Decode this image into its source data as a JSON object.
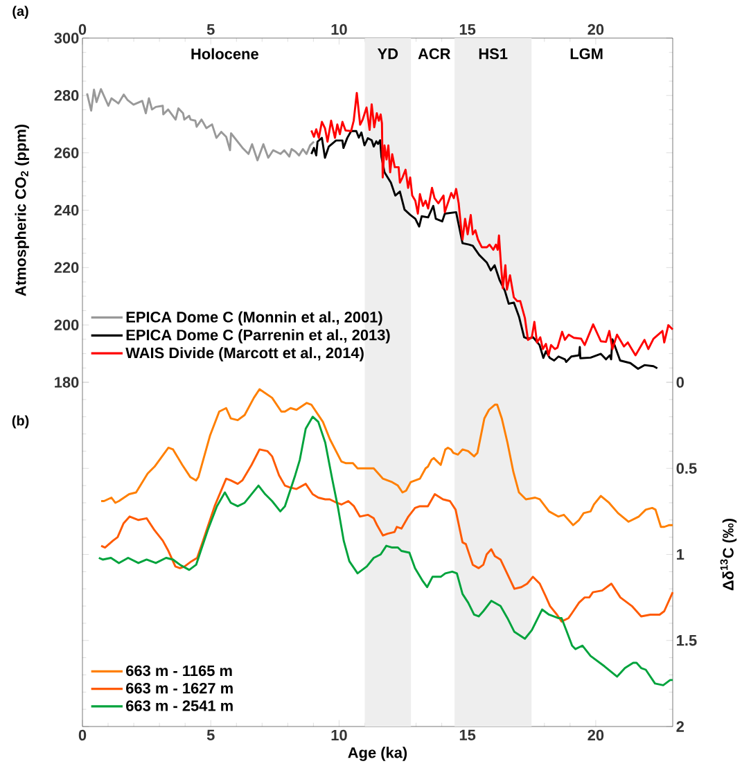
{
  "chart_data": [
    {
      "type": "line",
      "ylabel": "Atmospheric CO$_{2}$ (ppm)",
      "xlim": [
        0,
        23
      ],
      "xticks": [
        0,
        5,
        10,
        15,
        20
      ],
      "ylim": [
        180,
        300
      ],
      "yticks": [
        180,
        200,
        220,
        240,
        260,
        280,
        300
      ],
      "legend": "bottom left",
      "bands": [
        {
          "axis": "x",
          "from": 11,
          "to": 12.8,
          "label": "YD",
          "color": "#eeeeee"
        },
        {
          "axis": "x",
          "from": 14.5,
          "to": 17.5,
          "label": "HS1",
          "color": "#eeeeee"
        }
      ],
      "annotations": [
        "(a)",
        "Holocene",
        "ACR",
        "LGM"
      ],
      "series": [
        {
          "name": "EPICA Dome C (Monnin et al., 2001)",
          "color": "#999999",
          "x": [
            0.18,
            0.34,
            0.45,
            0.55,
            0.72,
            1.01,
            1.13,
            1.27,
            1.4,
            1.61,
            1.75,
            1.99,
            2.33,
            2.47,
            2.59,
            2.71,
            2.86,
            3.13,
            3.15,
            3.34,
            3.63,
            3.74,
            3.92,
            3.97,
            4.16,
            4.21,
            4.4,
            4.45,
            4.64,
            4.83,
            5.05,
            5.22,
            5.41,
            5.6,
            5.75,
            5.79,
            6.23,
            6.47,
            6.61,
            6.82,
            7.05,
            7.24,
            7.43,
            7.72,
            7.86,
            8.06,
            8.15,
            8.3,
            8.44,
            8.59,
            8.73,
            8.87,
            9.02
          ],
          "values": [
            280.7,
            274.7,
            282.0,
            277.7,
            282.2,
            276.4,
            279.0,
            278.1,
            277.2,
            280.3,
            278.5,
            276.8,
            278.1,
            273.8,
            279.0,
            275.1,
            276.0,
            276.4,
            273.4,
            275.1,
            271.6,
            275.5,
            273.8,
            271.6,
            272.9,
            271.6,
            271.2,
            269.1,
            271.6,
            268.6,
            269.9,
            265.2,
            267.3,
            265.6,
            260.9,
            266.8,
            261.8,
            259.6,
            263.0,
            257.4,
            263.0,
            258.3,
            260.9,
            259.6,
            260.9,
            258.7,
            261.3,
            260.4,
            259.1,
            261.3,
            259.6,
            262.6,
            263.9
          ]
        },
        {
          "name": "EPICA Dome C (Parrenin et al., 2013)",
          "color": "#000000",
          "x": [
            8.92,
            9.02,
            9.11,
            9.16,
            9.33,
            9.45,
            9.6,
            9.88,
            10.13,
            10.17,
            10.32,
            10.47,
            10.67,
            10.77,
            10.87,
            10.99,
            11.12,
            11.27,
            11.35,
            11.45,
            11.52,
            11.6,
            11.65,
            11.77,
            12.02,
            12.19,
            12.37,
            12.55,
            12.77,
            12.97,
            13.12,
            13.22,
            13.47,
            13.67,
            13.77,
            14.02,
            14.12,
            14.56,
            14.81,
            15.06,
            15.21,
            15.46,
            15.76,
            15.91,
            16.06,
            16.26,
            16.46,
            16.61,
            16.81,
            17.01,
            17.21,
            17.36,
            17.56,
            17.81,
            17.96,
            18.06,
            18.21,
            18.38,
            18.55,
            18.8,
            18.85,
            19.05,
            19.35,
            19.38,
            19.4,
            19.8,
            20.2,
            20.4,
            20.55,
            20.6,
            20.65,
            20.95,
            21.35,
            21.65,
            21.9,
            22.25,
            22.4
          ],
          "values": [
            259.6,
            261.7,
            259.1,
            263.9,
            265.2,
            258.3,
            262.2,
            264.3,
            264.3,
            261.7,
            265.2,
            267.6,
            267.6,
            265.3,
            267.1,
            262.6,
            265.1,
            264.4,
            262.2,
            264.0,
            263.1,
            264.4,
            258.6,
            253.2,
            249.6,
            245.1,
            246.5,
            240.2,
            238.4,
            237.0,
            234.3,
            237.9,
            237.5,
            241.5,
            237.0,
            236.1,
            238.8,
            239.3,
            228.5,
            228.0,
            227.6,
            224.4,
            221.7,
            219.0,
            220.8,
            215.5,
            211.9,
            207.4,
            207.8,
            202.9,
            195.7,
            195.2,
            195.7,
            193.0,
            188.5,
            190.8,
            188.5,
            187.6,
            189.0,
            188.0,
            187.1,
            189.0,
            189.4,
            192.3,
            188.4,
            188.6,
            189.9,
            188.0,
            189.4,
            188.0,
            195.0,
            187.6,
            186.7,
            184.7,
            186.0,
            185.6,
            184.9
          ]
        },
        {
          "name": "WAIS Divide (Marcott et al., 2014)",
          "color": "#ff0000",
          "x": [
            8.92,
            9.02,
            9.11,
            9.21,
            9.33,
            9.45,
            9.55,
            9.69,
            9.84,
            9.93,
            10.03,
            10.13,
            10.25,
            10.47,
            10.57,
            10.69,
            10.82,
            10.92,
            11.07,
            11.19,
            11.27,
            11.37,
            11.47,
            11.55,
            11.62,
            11.67,
            11.7,
            11.77,
            11.85,
            11.92,
            11.99,
            12.07,
            12.17,
            12.32,
            12.37,
            12.47,
            12.59,
            12.69,
            12.77,
            12.85,
            12.97,
            13.07,
            13.15,
            13.27,
            13.37,
            13.47,
            13.62,
            13.72,
            13.87,
            14.07,
            14.12,
            14.27,
            14.37,
            14.47,
            14.56,
            14.66,
            14.76,
            14.81,
            14.91,
            15.01,
            15.13,
            15.21,
            15.31,
            15.41,
            15.56,
            15.76,
            15.86,
            16.01,
            16.11,
            16.18,
            16.23,
            16.31,
            16.38,
            16.48,
            16.54,
            16.66,
            16.81,
            16.94,
            17.06,
            17.24,
            17.36,
            17.51,
            17.61,
            17.71,
            17.84,
            17.94,
            18.06,
            18.16,
            18.26,
            18.41,
            18.51,
            18.69,
            18.8,
            18.95,
            19.15,
            19.43,
            19.57,
            19.9,
            20.2,
            20.4,
            20.53,
            20.65,
            20.83,
            21.1,
            21.25,
            21.55,
            21.9,
            22.05,
            22.25,
            22.6,
            22.67,
            22.83,
            23.0
          ],
          "values": [
            267.8,
            265.6,
            268.2,
            265.2,
            270.8,
            268.6,
            263.9,
            271.2,
            265.2,
            269.9,
            266.5,
            270.8,
            267.8,
            267.6,
            271.2,
            280.9,
            269.8,
            271.6,
            275.8,
            268.0,
            276.9,
            268.9,
            273.8,
            271.2,
            273.4,
            270.3,
            251.4,
            262.6,
            257.7,
            262.6,
            253.2,
            259.5,
            255.0,
            255.0,
            249.6,
            251.4,
            254.1,
            247.8,
            251.4,
            245.1,
            243.3,
            238.8,
            245.6,
            241.5,
            243.3,
            240.6,
            247.8,
            244.2,
            242.4,
            245.1,
            239.3,
            243.3,
            246.0,
            244.2,
            247.4,
            242.4,
            233.4,
            229.8,
            237.0,
            231.6,
            238.3,
            231.6,
            233.0,
            229.8,
            227.1,
            227.1,
            228.0,
            226.2,
            228.0,
            226.2,
            231.2,
            220.8,
            212.8,
            220.8,
            212.3,
            217.3,
            209.6,
            208.3,
            208.3,
            202.4,
            194.8,
            195.7,
            201.1,
            193.9,
            195.7,
            191.6,
            193.4,
            189.4,
            193.0,
            191.6,
            192.1,
            197.6,
            194.8,
            196.6,
            195.5,
            195.2,
            193.0,
            200.2,
            194.3,
            194.1,
            197.9,
            191.6,
            196.6,
            192.5,
            193.9,
            189.4,
            194.8,
            191.6,
            195.2,
            197.9,
            193.9,
            199.9,
            198.4
          ]
        }
      ]
    },
    {
      "type": "line",
      "xlabel": "Age (ka)",
      "ylabel": "Δδ$^{13}$C (‰)",
      "xlim": [
        0,
        23
      ],
      "xticks": [
        0,
        5,
        10,
        15,
        20
      ],
      "ylim": [
        2,
        0
      ],
      "yticks": [
        0,
        0.5,
        1,
        1.5,
        2
      ],
      "legend": "bottom left",
      "bands": [
        {
          "axis": "x",
          "from": 11,
          "to": 12.8,
          "color": "#eeeeee"
        },
        {
          "axis": "x",
          "from": 14.5,
          "to": 17.5,
          "color": "#eeeeee"
        }
      ],
      "annotations": [
        "(b)"
      ],
      "series": [
        {
          "name": "663 m - 1165 m",
          "color": "#ff7f00",
          "x": [
            0.73,
            0.84,
            1.13,
            1.28,
            1.42,
            1.82,
            2.09,
            2.54,
            2.81,
            3.35,
            3.53,
            3.89,
            4.2,
            4.43,
            4.52,
            4.97,
            5.33,
            5.6,
            5.78,
            6.05,
            6.32,
            6.68,
            6.9,
            7.39,
            7.75,
            7.89,
            8.11,
            8.34,
            8.74,
            8.92,
            9.37,
            9.64,
            10.09,
            10.27,
            10.54,
            10.72,
            11.08,
            11.35,
            11.71,
            12.07,
            12.29,
            12.47,
            12.61,
            12.79,
            13.15,
            13.37,
            13.46,
            13.6,
            13.69,
            13.96,
            14.14,
            14.24,
            14.36,
            14.45,
            14.63,
            14.81,
            15.03,
            15.26,
            15.39,
            15.66,
            15.84,
            16.07,
            16.16,
            16.34,
            16.56,
            16.79,
            17.01,
            17.28,
            17.64,
            17.82,
            18.18,
            18.54,
            18.76,
            19.12,
            19.35,
            19.53,
            19.8,
            19.93,
            20.2,
            20.52,
            20.87,
            21.28,
            21.68,
            21.95,
            22.2,
            22.33,
            22.54,
            22.67,
            22.85,
            23.0
          ],
          "values": [
            0.69,
            0.69,
            0.67,
            0.7,
            0.69,
            0.65,
            0.64,
            0.53,
            0.49,
            0.38,
            0.39,
            0.48,
            0.55,
            0.57,
            0.55,
            0.31,
            0.17,
            0.15,
            0.21,
            0.22,
            0.19,
            0.09,
            0.04,
            0.09,
            0.17,
            0.17,
            0.15,
            0.16,
            0.12,
            0.13,
            0.23,
            0.33,
            0.46,
            0.47,
            0.47,
            0.5,
            0.5,
            0.5,
            0.56,
            0.58,
            0.6,
            0.64,
            0.63,
            0.58,
            0.56,
            0.5,
            0.49,
            0.45,
            0.44,
            0.48,
            0.39,
            0.38,
            0.39,
            0.41,
            0.42,
            0.39,
            0.4,
            0.43,
            0.41,
            0.21,
            0.16,
            0.13,
            0.13,
            0.21,
            0.35,
            0.52,
            0.64,
            0.68,
            0.67,
            0.68,
            0.75,
            0.78,
            0.77,
            0.83,
            0.8,
            0.76,
            0.75,
            0.71,
            0.66,
            0.7,
            0.76,
            0.81,
            0.78,
            0.74,
            0.73,
            0.74,
            0.84,
            0.84,
            0.83,
            0.83
          ]
        },
        {
          "name": "663 m - 1627 m",
          "color": "#ff5a00",
          "x": [
            0.73,
            0.88,
            1.19,
            1.37,
            1.6,
            1.84,
            2.18,
            2.5,
            2.81,
            3.13,
            3.35,
            3.62,
            3.8,
            3.98,
            4.25,
            4.47,
            4.7,
            5.15,
            5.6,
            5.78,
            6.05,
            6.23,
            6.59,
            6.9,
            7.21,
            7.39,
            7.66,
            7.89,
            8.07,
            8.34,
            8.7,
            8.97,
            9.19,
            9.46,
            9.64,
            9.91,
            10.09,
            10.36,
            10.58,
            10.81,
            11.12,
            11.35,
            11.48,
            11.71,
            11.89,
            12.16,
            12.25,
            12.43,
            12.7,
            12.96,
            13.15,
            13.46,
            13.73,
            14.05,
            14.32,
            14.54,
            14.81,
            14.94,
            15.21,
            15.44,
            15.62,
            15.75,
            15.93,
            16.07,
            16.29,
            16.61,
            16.83,
            17.1,
            17.33,
            17.55,
            17.82,
            18.04,
            18.22,
            18.49,
            18.67,
            18.94,
            19.08,
            19.35,
            19.57,
            19.75,
            19.89,
            20.25,
            20.61,
            20.96,
            21.41,
            21.77,
            22.13,
            22.49,
            22.67,
            23.0
          ],
          "values": [
            0.95,
            0.96,
            0.92,
            0.9,
            0.82,
            0.78,
            0.8,
            0.79,
            0.86,
            0.92,
            0.98,
            1.07,
            1.08,
            1.07,
            1.04,
            1.02,
            0.92,
            0.72,
            0.56,
            0.57,
            0.59,
            0.57,
            0.48,
            0.39,
            0.4,
            0.43,
            0.54,
            0.6,
            0.61,
            0.62,
            0.59,
            0.65,
            0.67,
            0.68,
            0.68,
            0.7,
            0.71,
            0.69,
            0.72,
            0.78,
            0.77,
            0.79,
            0.83,
            0.89,
            0.88,
            0.87,
            0.84,
            0.85,
            0.78,
            0.73,
            0.72,
            0.72,
            0.65,
            0.68,
            0.69,
            0.74,
            0.93,
            0.94,
            1.06,
            1.08,
            1.06,
            1.0,
            0.97,
            1.01,
            1.03,
            1.13,
            1.2,
            1.19,
            1.17,
            1.13,
            1.17,
            1.24,
            1.3,
            1.35,
            1.39,
            1.37,
            1.34,
            1.28,
            1.25,
            1.25,
            1.22,
            1.21,
            1.17,
            1.25,
            1.3,
            1.36,
            1.35,
            1.35,
            1.33,
            1.22
          ]
        },
        {
          "name": "663 m - 2541 m",
          "color": "#00a33c",
          "x": [
            0.64,
            0.79,
            1.11,
            1.42,
            1.78,
            2.18,
            2.5,
            2.86,
            3.26,
            3.53,
            3.8,
            4.16,
            4.43,
            4.61,
            4.88,
            5.24,
            5.55,
            5.78,
            6.05,
            6.32,
            6.86,
            7.12,
            7.39,
            7.71,
            7.89,
            8.29,
            8.47,
            8.7,
            8.97,
            9.19,
            9.46,
            9.73,
            9.96,
            10.18,
            10.4,
            10.72,
            11.08,
            11.35,
            11.62,
            11.84,
            12.07,
            12.29,
            12.43,
            12.74,
            12.96,
            13.24,
            13.43,
            13.64,
            13.96,
            14.14,
            14.41,
            14.59,
            14.81,
            15.03,
            15.26,
            15.44,
            15.62,
            15.93,
            16.29,
            16.56,
            16.83,
            17.24,
            17.51,
            17.91,
            18.18,
            18.54,
            18.67,
            18.85,
            19.08,
            19.21,
            19.48,
            19.8,
            20.34,
            20.83,
            21.14,
            21.46,
            21.59,
            21.77,
            21.95,
            22.31,
            22.63,
            22.9,
            23.0
          ],
          "values": [
            1.02,
            1.03,
            1.02,
            1.05,
            1.02,
            1.05,
            1.03,
            1.05,
            1.02,
            1.03,
            1.06,
            1.09,
            1.06,
            0.98,
            0.86,
            0.72,
            0.64,
            0.7,
            0.72,
            0.7,
            0.6,
            0.65,
            0.69,
            0.75,
            0.72,
            0.54,
            0.45,
            0.27,
            0.2,
            0.23,
            0.35,
            0.56,
            0.73,
            0.92,
            1.04,
            1.11,
            1.07,
            1.02,
            1.0,
            0.95,
            0.96,
            0.96,
            0.98,
            0.99,
            1.08,
            1.15,
            1.19,
            1.13,
            1.13,
            1.11,
            1.1,
            1.11,
            1.23,
            1.28,
            1.35,
            1.36,
            1.33,
            1.27,
            1.3,
            1.37,
            1.45,
            1.49,
            1.44,
            1.32,
            1.35,
            1.37,
            1.37,
            1.44,
            1.53,
            1.55,
            1.53,
            1.59,
            1.65,
            1.71,
            1.66,
            1.63,
            1.63,
            1.66,
            1.67,
            1.75,
            1.76,
            1.73,
            1.73
          ]
        }
      ]
    }
  ]
}
